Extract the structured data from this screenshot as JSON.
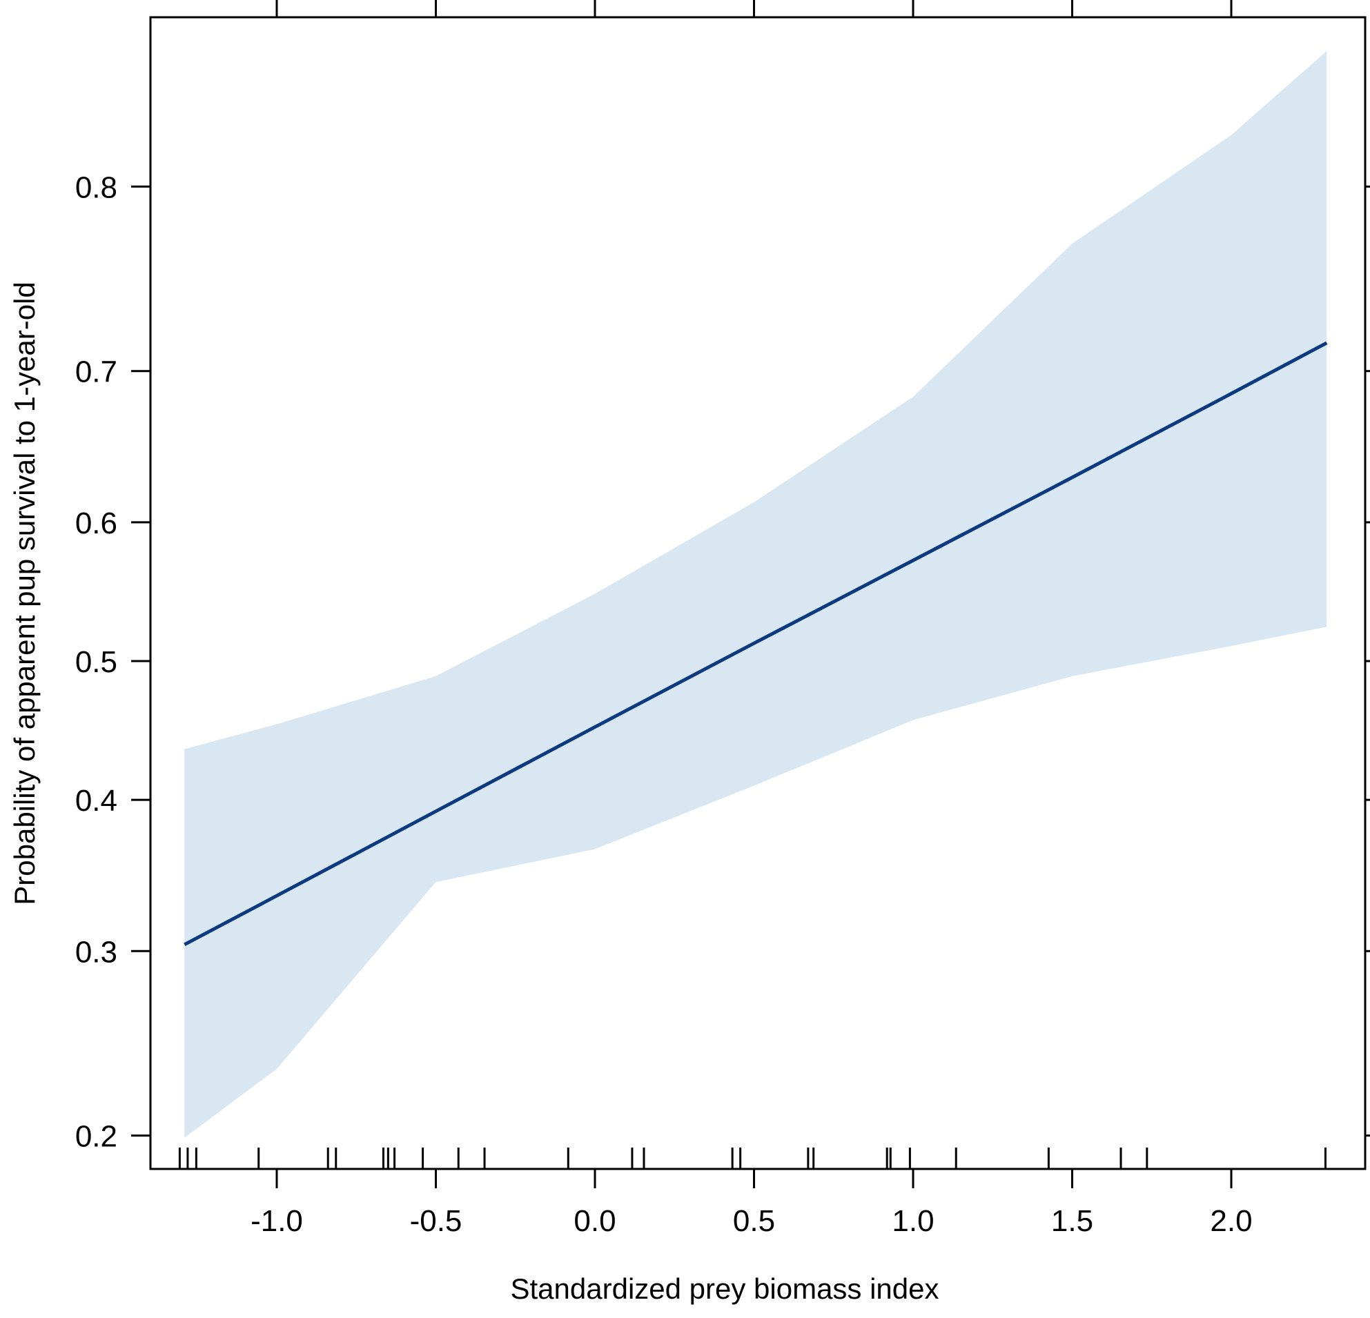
{
  "chart_data": {
    "type": "line",
    "title": "",
    "xlabel": "Standardized prey biomass index",
    "ylabel": "Probability of apparent pup survival to 1-year-old",
    "xlim": [
      -1.38,
      2.39
    ],
    "ylim": [
      0.186,
      0.878
    ],
    "y_scale": "logit",
    "x_ticks": [
      -1.0,
      -0.5,
      0.0,
      0.5,
      1.0,
      1.5,
      2.0
    ],
    "x_tick_labels": [
      "-1.0",
      "-0.5",
      "0.0",
      "0.5",
      "1.0",
      "1.5",
      "2.0"
    ],
    "y_ticks": [
      0.2,
      0.3,
      0.4,
      0.5,
      0.6,
      0.7,
      0.8
    ],
    "y_tick_labels": [
      "0.2",
      "0.3",
      "0.4",
      "0.5",
      "0.6",
      "0.7",
      "0.8"
    ],
    "grid": false,
    "colors": {
      "line": "#0b3a80",
      "band": "#d8e7f2",
      "axis": "#000000"
    },
    "fit": {
      "name": "estimate",
      "x": [
        -1.29,
        -1.0,
        -0.5,
        0.0,
        0.5,
        1.0,
        1.5,
        2.0,
        2.3
      ],
      "y": [
        0.304,
        0.335,
        0.392,
        0.452,
        0.513,
        0.573,
        0.631,
        0.686,
        0.717
      ]
    },
    "confidence_band": {
      "x": [
        -1.29,
        -1.0,
        -0.5,
        0.0,
        0.5,
        1.0,
        1.5,
        2.0,
        2.3
      ],
      "lower": [
        0.199,
        0.233,
        0.344,
        0.366,
        0.41,
        0.457,
        0.489,
        0.511,
        0.525
      ],
      "upper": [
        0.436,
        0.454,
        0.489,
        0.549,
        0.614,
        0.684,
        0.772,
        0.823,
        0.856
      ]
    },
    "rug": [
      -1.305,
      -1.28,
      -1.253,
      -1.057,
      -0.839,
      -0.814,
      -0.665,
      -0.65,
      -0.63,
      -0.541,
      -0.429,
      -0.347,
      -0.084,
      0.117,
      0.154,
      0.432,
      0.457,
      0.67,
      0.687,
      0.918,
      0.929,
      0.99,
      1.135,
      1.426,
      1.653,
      1.735,
      2.296
    ]
  }
}
